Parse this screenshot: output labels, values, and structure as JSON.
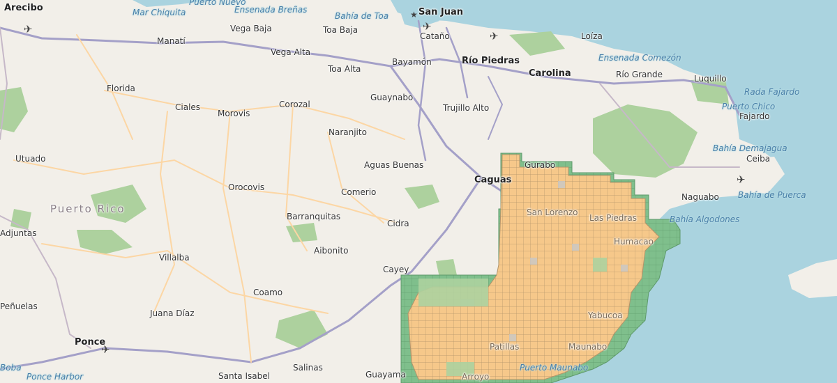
{
  "colors": {
    "sea": "#aad3df",
    "land": "#f2efe9",
    "forest": "#add19e",
    "grid_fill": "#f6c88a",
    "grid_line": "#b3946a",
    "grid_green": "#66b277",
    "road": "#fcd6a4",
    "motorway": "#a4a0c8"
  },
  "icons": {
    "airport": "airplane-icon",
    "capital": "star-icon"
  },
  "places": [
    {
      "id": "arecibo",
      "name": "Arecibo",
      "big": true
    },
    {
      "id": "san-juan",
      "name": "San Juan",
      "big": true
    },
    {
      "id": "vega-baja",
      "name": "Vega Baja"
    },
    {
      "id": "toa-baja",
      "name": "Toa Baja"
    },
    {
      "id": "catano",
      "name": "Cataño"
    },
    {
      "id": "manati",
      "name": "Manatí"
    },
    {
      "id": "vega-alta",
      "name": "Vega Alta"
    },
    {
      "id": "toa-alta",
      "name": "Toa Alta"
    },
    {
      "id": "bayamon",
      "name": "Bayamón"
    },
    {
      "id": "rio-piedras",
      "name": "Río Piedras",
      "big": true
    },
    {
      "id": "carolina",
      "name": "Carolina",
      "big": true
    },
    {
      "id": "loiza",
      "name": "Loíza"
    },
    {
      "id": "rio-grande",
      "name": "Río Grande"
    },
    {
      "id": "luquillo",
      "name": "Luquillo"
    },
    {
      "id": "fajardo",
      "name": "Fajardo"
    },
    {
      "id": "florida",
      "name": "Florida"
    },
    {
      "id": "ciales",
      "name": "Ciales"
    },
    {
      "id": "morovis",
      "name": "Morovis"
    },
    {
      "id": "corozal",
      "name": "Corozal"
    },
    {
      "id": "guaynabo",
      "name": "Guaynabo"
    },
    {
      "id": "trujillo-alto",
      "name": "Trujillo Alto"
    },
    {
      "id": "naranjito",
      "name": "Naranjito"
    },
    {
      "id": "utuado",
      "name": "Utuado"
    },
    {
      "id": "aguas-buenas",
      "name": "Aguas Buenas"
    },
    {
      "id": "caguas",
      "name": "Caguas",
      "big": true
    },
    {
      "id": "gurabo",
      "name": "Gurabo"
    },
    {
      "id": "ceiba",
      "name": "Ceiba"
    },
    {
      "id": "naguabo",
      "name": "Naguabo"
    },
    {
      "id": "orocovis",
      "name": "Orocovis"
    },
    {
      "id": "comerio",
      "name": "Comerio"
    },
    {
      "id": "san-lorenzo",
      "name": "San Lorenzo"
    },
    {
      "id": "las-piedras",
      "name": "Las Piedras"
    },
    {
      "id": "humacao",
      "name": "Humacao"
    },
    {
      "id": "adjuntas",
      "name": "Adjuntas"
    },
    {
      "id": "barranquitas",
      "name": "Barranquitas"
    },
    {
      "id": "cidra",
      "name": "Cidra"
    },
    {
      "id": "aibonito",
      "name": "Aibonito"
    },
    {
      "id": "villalba",
      "name": "Villalba"
    },
    {
      "id": "cayey",
      "name": "Cayey"
    },
    {
      "id": "coamo",
      "name": "Coamo"
    },
    {
      "id": "penuelas",
      "name": "Peñuelas"
    },
    {
      "id": "juana-diaz",
      "name": "Juana Díaz"
    },
    {
      "id": "yabucoa",
      "name": "Yabucoa"
    },
    {
      "id": "ponce",
      "name": "Ponce",
      "big": true
    },
    {
      "id": "patillas",
      "name": "Patillas"
    },
    {
      "id": "maunabo",
      "name": "Maunabo"
    },
    {
      "id": "santa-isabel",
      "name": "Santa Isabel"
    },
    {
      "id": "salinas",
      "name": "Salinas"
    },
    {
      "id": "guayama",
      "name": "Guayama"
    },
    {
      "id": "arroyo",
      "name": "Arroyo"
    }
  ],
  "water_labels": [
    {
      "id": "mar-chiquita",
      "name": "Mar Chiquita"
    },
    {
      "id": "puerto-nuevo",
      "name": "Puerto Nuevo"
    },
    {
      "id": "ensenada-brenas",
      "name": "Ensenada Breñas"
    },
    {
      "id": "bahia-de-toa",
      "name": "Bahía de Toa"
    },
    {
      "id": "ensenada-comezon",
      "name": "Ensenada Comezón"
    },
    {
      "id": "rada-fajardo",
      "name": "Rada Fajardo"
    },
    {
      "id": "puerto-chico",
      "name": "Puerto Chico"
    },
    {
      "id": "bahia-demajagua",
      "name": "Bahía Demajagua"
    },
    {
      "id": "bahia-de-puerca",
      "name": "Bahía de Puerca"
    },
    {
      "id": "bahia-algodones",
      "name": "Bahía Algodones"
    },
    {
      "id": "puerto-maunabo",
      "name": "Puerto Maunabo"
    },
    {
      "id": "ponce-harbor",
      "name": "Ponce Harbor"
    },
    {
      "id": "boba",
      "name": "Boba"
    }
  ],
  "region_label": "Puerto Rico"
}
